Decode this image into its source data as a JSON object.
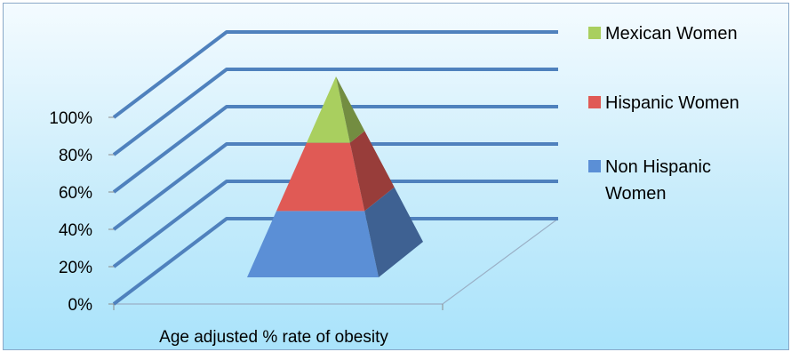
{
  "chart_data": {
    "type": "pyramid-3d-stacked-100",
    "categories": [
      "Age adjusted % rate of obesity"
    ],
    "series": [
      {
        "name": "Non Hispanic Women",
        "values": [
          33
        ],
        "color": "#5b8fd6"
      },
      {
        "name": "Hispanic Women",
        "values": [
          34
        ],
        "color": "#e05a55"
      },
      {
        "name": "Mexican Women",
        "values": [
          33
        ],
        "color": "#a9cf5f"
      }
    ],
    "yticks": [
      "0%",
      "20%",
      "40%",
      "60%",
      "80%",
      "100%"
    ],
    "ylim": [
      0,
      100
    ],
    "grid": true,
    "legend_position": "right"
  }
}
